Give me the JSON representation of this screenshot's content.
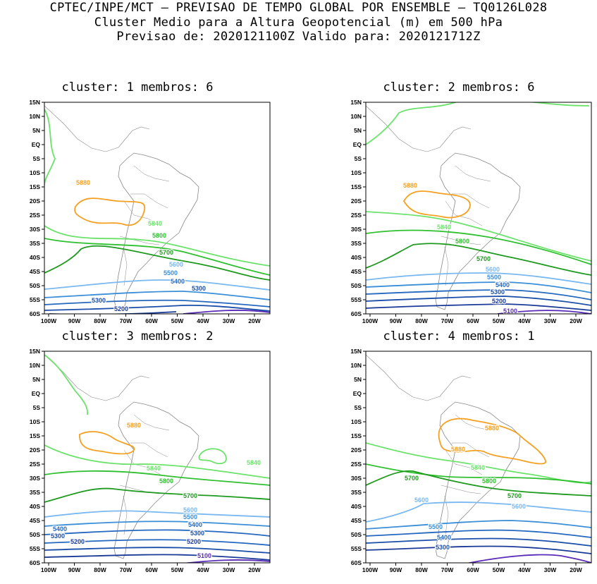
{
  "header": {
    "line1": "CPTEC/INPE/MCT – PREVISAO DE TEMPO GLOBAL POR ENSEMBLE – TQ0126L028",
    "line2": "Cluster Medio para a Altura Geopotencial (m) em 500 hPa",
    "line3": "Previsao de: 2020121100Z   Valido para: 2020121712Z"
  },
  "lat_ticks": [
    "15N",
    "10N",
    "5N",
    "EQ",
    "5S",
    "10S",
    "15S",
    "20S",
    "25S",
    "30S",
    "35S",
    "40S",
    "45S",
    "50S",
    "55S",
    "60S"
  ],
  "lon_ticks": [
    "100W",
    "90W",
    "80W",
    "70W",
    "60W",
    "50W",
    "40W",
    "30W",
    "20W"
  ],
  "colors": {
    "c5880": "#f5a020",
    "c5840": "#6be36b",
    "c5800": "#2ec02e",
    "c5700": "#1e9a1e",
    "c5600": "#7ab8f0",
    "c5500": "#3a8fd8",
    "c5400": "#2468c0",
    "c5300": "#1a4ea8",
    "c5200": "#1a3a98",
    "c5100": "#5a2ab8",
    "coast": "#888888"
  },
  "panels": [
    {
      "title": "cluster: 1   membros: 6",
      "labels": [
        {
          "t": "5880",
          "c": "c5880"
        },
        {
          "t": "5840",
          "c": "c5840"
        },
        {
          "t": "5800",
          "c": "c5800"
        },
        {
          "t": "5700",
          "c": "c5700"
        },
        {
          "t": "5600",
          "c": "c5600"
        },
        {
          "t": "5500",
          "c": "c5500"
        },
        {
          "t": "5400",
          "c": "c5400"
        },
        {
          "t": "5300",
          "c": "c5300"
        },
        {
          "t": "5300",
          "c": "c5300"
        },
        {
          "t": "5200",
          "c": "c5200"
        }
      ]
    },
    {
      "title": "cluster: 2   membros: 6",
      "labels": [
        {
          "t": "5880",
          "c": "c5880"
        },
        {
          "t": "5840",
          "c": "c5840"
        },
        {
          "t": "5800",
          "c": "c5800"
        },
        {
          "t": "5700",
          "c": "c5700"
        },
        {
          "t": "5600",
          "c": "c5600"
        },
        {
          "t": "5500",
          "c": "c5500"
        },
        {
          "t": "5400",
          "c": "c5400"
        },
        {
          "t": "5300",
          "c": "c5300"
        },
        {
          "t": "5200",
          "c": "c5200"
        },
        {
          "t": "5100",
          "c": "c5100"
        }
      ]
    },
    {
      "title": "cluster: 3   membros: 2",
      "labels": [
        {
          "t": "5880",
          "c": "c5880"
        },
        {
          "t": "5840",
          "c": "c5840"
        },
        {
          "t": "5840",
          "c": "c5840"
        },
        {
          "t": "5800",
          "c": "c5800"
        },
        {
          "t": "5700",
          "c": "c5700"
        },
        {
          "t": "5600",
          "c": "c5600"
        },
        {
          "t": "5500",
          "c": "c5500"
        },
        {
          "t": "5400",
          "c": "c5400"
        },
        {
          "t": "5400",
          "c": "c5400"
        },
        {
          "t": "5300",
          "c": "c5300"
        },
        {
          "t": "5300",
          "c": "c5300"
        },
        {
          "t": "5200",
          "c": "c5200"
        },
        {
          "t": "5200",
          "c": "c5200"
        },
        {
          "t": "5100",
          "c": "c5100"
        }
      ]
    },
    {
      "title": "cluster: 4   membros: 1",
      "labels": [
        {
          "t": "5880",
          "c": "c5880"
        },
        {
          "t": "5880",
          "c": "c5880"
        },
        {
          "t": "5840",
          "c": "c5840"
        },
        {
          "t": "5800",
          "c": "c5800"
        },
        {
          "t": "5700",
          "c": "c5700"
        },
        {
          "t": "5700",
          "c": "c5700"
        },
        {
          "t": "5600",
          "c": "c5600"
        },
        {
          "t": "5600",
          "c": "c5600"
        },
        {
          "t": "5500",
          "c": "c5500"
        },
        {
          "t": "5400",
          "c": "c5400"
        },
        {
          "t": "5300",
          "c": "c5300"
        }
      ]
    }
  ]
}
